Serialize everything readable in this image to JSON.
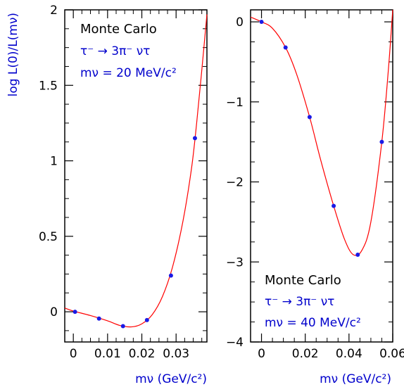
{
  "chart_data": [
    {
      "type": "scatter",
      "xlabel": "mν (GeV/c²)",
      "ylabel": "log L(0)/L(mν)",
      "xlim": [
        -0.0025,
        0.039
      ],
      "ylim": [
        -0.2,
        2.0
      ],
      "xticks": [
        0,
        0.01,
        0.02,
        0.03
      ],
      "xtick_labels": [
        "0",
        "0.01",
        "0.02",
        "0.03"
      ],
      "yticks": [
        0,
        0.5,
        1,
        1.5,
        2
      ],
      "ytick_labels": [
        "0",
        "0.5",
        "1",
        "1.5",
        "2"
      ],
      "annotations": [
        "Monte Carlo",
        "τ⁻ → 3π⁻ ντ",
        "mν = 20 MeV/c²"
      ],
      "series": [
        {
          "points": [
            {
              "x": 0.0005,
              "y": 0.0
            },
            {
              "x": 0.0075,
              "y": -0.045
            },
            {
              "x": 0.0145,
              "y": -0.095
            },
            {
              "x": 0.0215,
              "y": -0.055
            },
            {
              "x": 0.0285,
              "y": 0.24
            },
            {
              "x": 0.0355,
              "y": 1.15
            }
          ],
          "fit": [
            {
              "x": -0.0025,
              "y": 0.025
            },
            {
              "x": 0.0,
              "y": 0.005
            },
            {
              "x": 0.005,
              "y": -0.025
            },
            {
              "x": 0.01,
              "y": -0.06
            },
            {
              "x": 0.0135,
              "y": -0.09
            },
            {
              "x": 0.017,
              "y": -0.1
            },
            {
              "x": 0.02,
              "y": -0.08
            },
            {
              "x": 0.023,
              "y": -0.02
            },
            {
              "x": 0.026,
              "y": 0.1
            },
            {
              "x": 0.029,
              "y": 0.3
            },
            {
              "x": 0.032,
              "y": 0.6
            },
            {
              "x": 0.0345,
              "y": 0.95
            },
            {
              "x": 0.036,
              "y": 1.25
            },
            {
              "x": 0.0375,
              "y": 1.6
            },
            {
              "x": 0.039,
              "y": 1.97
            }
          ]
        }
      ]
    },
    {
      "type": "scatter",
      "xlabel": "mν (GeV/c²)",
      "ylabel": "",
      "xlim": [
        -0.005,
        0.06
      ],
      "ylim": [
        -4.0,
        0.15
      ],
      "xticks": [
        0,
        0.02,
        0.04,
        0.06
      ],
      "xtick_labels": [
        "0",
        "0.02",
        "0.04",
        "0.06"
      ],
      "yticks": [
        0,
        -1,
        -2,
        -3,
        -4
      ],
      "ytick_labels": [
        "0",
        "−1",
        "−2",
        "−3",
        "−4"
      ],
      "annotations": [
        "Monte Carlo",
        "τ⁻ → 3π⁻ ντ",
        "mν = 40 MeV/c²"
      ],
      "series": [
        {
          "points": [
            {
              "x": 0.0,
              "y": 0.0
            },
            {
              "x": 0.011,
              "y": -0.32
            },
            {
              "x": 0.022,
              "y": -1.19
            },
            {
              "x": 0.033,
              "y": -2.3
            },
            {
              "x": 0.044,
              "y": -2.91
            },
            {
              "x": 0.055,
              "y": -1.5
            }
          ],
          "fit": [
            {
              "x": -0.005,
              "y": 0.06
            },
            {
              "x": 0.0,
              "y": 0.0
            },
            {
              "x": 0.005,
              "y": -0.08
            },
            {
              "x": 0.011,
              "y": -0.32
            },
            {
              "x": 0.016,
              "y": -0.65
            },
            {
              "x": 0.022,
              "y": -1.19
            },
            {
              "x": 0.027,
              "y": -1.72
            },
            {
              "x": 0.033,
              "y": -2.3
            },
            {
              "x": 0.038,
              "y": -2.72
            },
            {
              "x": 0.042,
              "y": -2.91
            },
            {
              "x": 0.046,
              "y": -2.85
            },
            {
              "x": 0.05,
              "y": -2.5
            },
            {
              "x": 0.055,
              "y": -1.5
            },
            {
              "x": 0.058,
              "y": -0.6
            },
            {
              "x": 0.06,
              "y": 0.15
            }
          ]
        }
      ]
    }
  ]
}
